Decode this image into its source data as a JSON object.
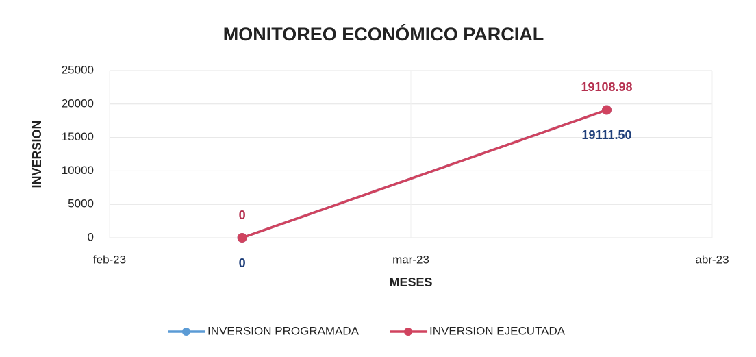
{
  "chart_data": {
    "type": "line",
    "title": "MONITOREO ECONÓMICO PARCIAL",
    "x_label": "MESES",
    "y_label": "INVERSION",
    "x": [
      0.44,
      1.65
    ],
    "xlim": [
      0,
      2
    ],
    "xticks": [
      {
        "value": 0,
        "label": "feb-23"
      },
      {
        "value": 1,
        "label": "mar-23"
      },
      {
        "value": 2,
        "label": "abr-23"
      }
    ],
    "ylim": [
      0,
      25000
    ],
    "yticks": [
      0,
      5000,
      10000,
      15000,
      20000,
      25000
    ],
    "grid": true,
    "legend": "bottom",
    "series": [
      {
        "name": "INVERSION PROGRAMADA",
        "color": "#5b9bd5",
        "label_color": "#1f3f7a",
        "label_position": "below",
        "values": [
          0,
          19111.5
        ],
        "value_labels": [
          "0",
          "19111.50"
        ]
      },
      {
        "name": "INVERSION EJECUTADA",
        "color": "#d0435f",
        "label_color": "#b5304f",
        "label_position": "above",
        "values": [
          0,
          19108.98
        ],
        "value_labels": [
          "0",
          "19108.98"
        ]
      }
    ]
  }
}
